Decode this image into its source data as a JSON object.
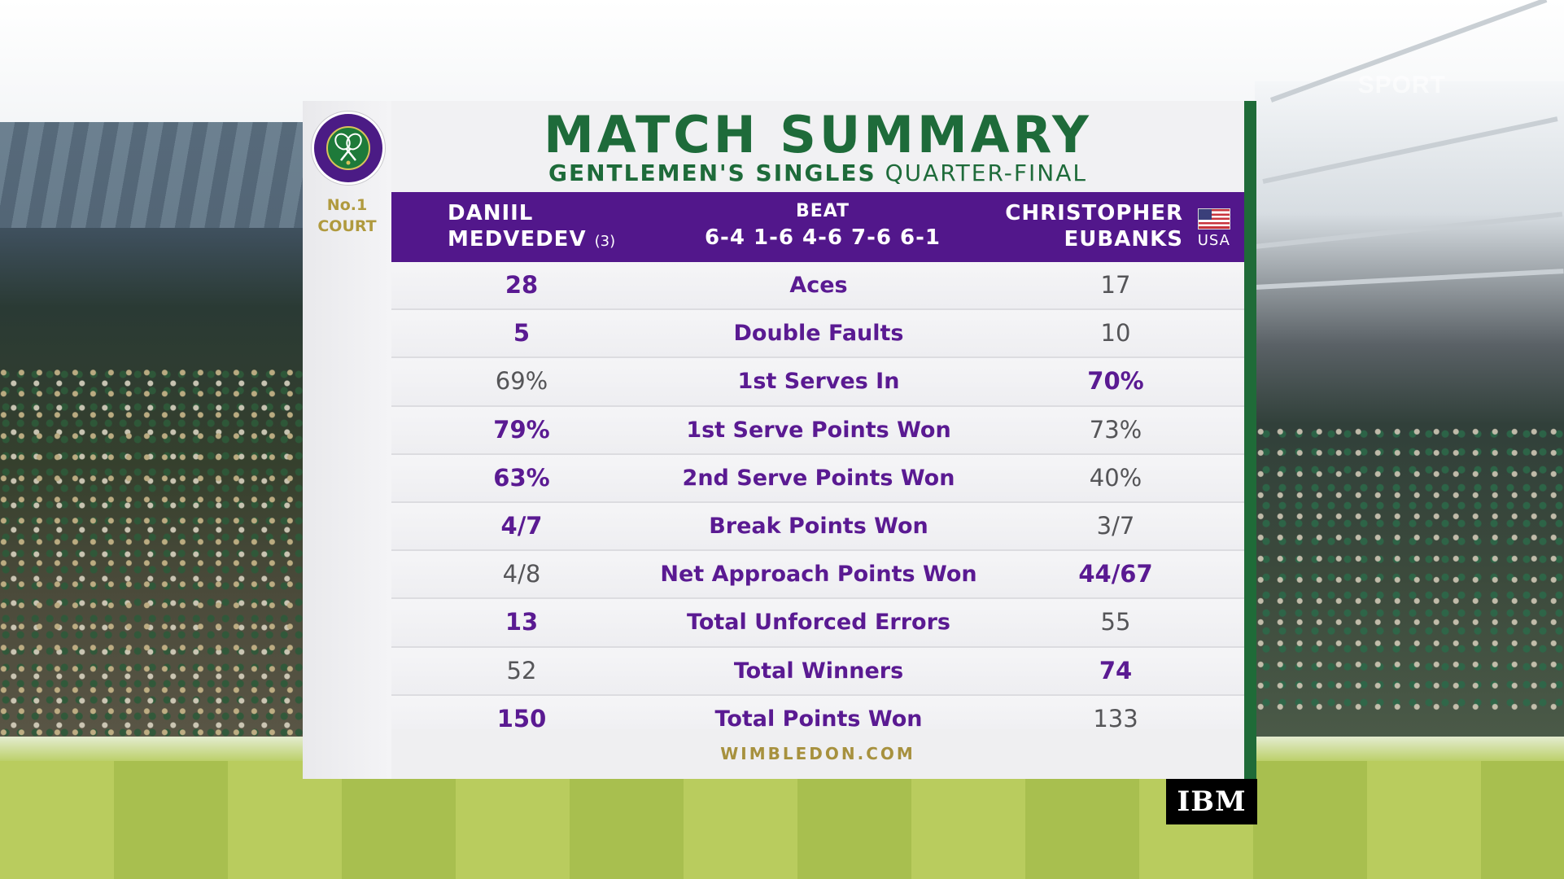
{
  "watermark": "SPORT",
  "panel": {
    "title": "MATCH SUMMARY",
    "subtitle_event": "GENTLEMEN'S SINGLES",
    "subtitle_round": "QUARTER-FINAL",
    "court_line1": "No.1",
    "court_line2": "COURT",
    "player1": {
      "first": "DANIIL",
      "last": "MEDVEDEV",
      "seed": "(3)"
    },
    "result": {
      "label": "BEAT",
      "score": "6-4 1-6 4-6 7-6 6-1"
    },
    "player2": {
      "first": "CHRISTOPHER",
      "last": "EUBANKS",
      "country": "USA"
    },
    "footer": "WIMBLEDON.COM"
  },
  "stats": [
    {
      "label": "Aces",
      "p1": "28",
      "p2": "17",
      "leader": "p1"
    },
    {
      "label": "Double Faults",
      "p1": "5",
      "p2": "10",
      "leader": "p1"
    },
    {
      "label": "1st Serves In",
      "p1": "69%",
      "p2": "70%",
      "leader": "p2"
    },
    {
      "label": "1st Serve Points Won",
      "p1": "79%",
      "p2": "73%",
      "leader": "p1"
    },
    {
      "label": "2nd Serve Points Won",
      "p1": "63%",
      "p2": "40%",
      "leader": "p1"
    },
    {
      "label": "Break Points Won",
      "p1": "4/7",
      "p2": "3/7",
      "leader": "p1"
    },
    {
      "label": "Net Approach Points Won",
      "p1": "4/8",
      "p2": "44/67",
      "leader": "p2"
    },
    {
      "label": "Total Unforced Errors",
      "p1": "13",
      "p2": "55",
      "leader": "p1"
    },
    {
      "label": "Total Winners",
      "p1": "52",
      "p2": "74",
      "leader": "p2"
    },
    {
      "label": "Total Points Won",
      "p1": "150",
      "p2": "133",
      "leader": "p1"
    }
  ],
  "sponsor": "IBM",
  "colors": {
    "purple": "#52178b",
    "green": "#1e6b3a",
    "gold": "#a7913e"
  },
  "icons": {
    "logo": "wimbledon-crossed-rackets-logo",
    "flag": "usa-flag-icon"
  }
}
